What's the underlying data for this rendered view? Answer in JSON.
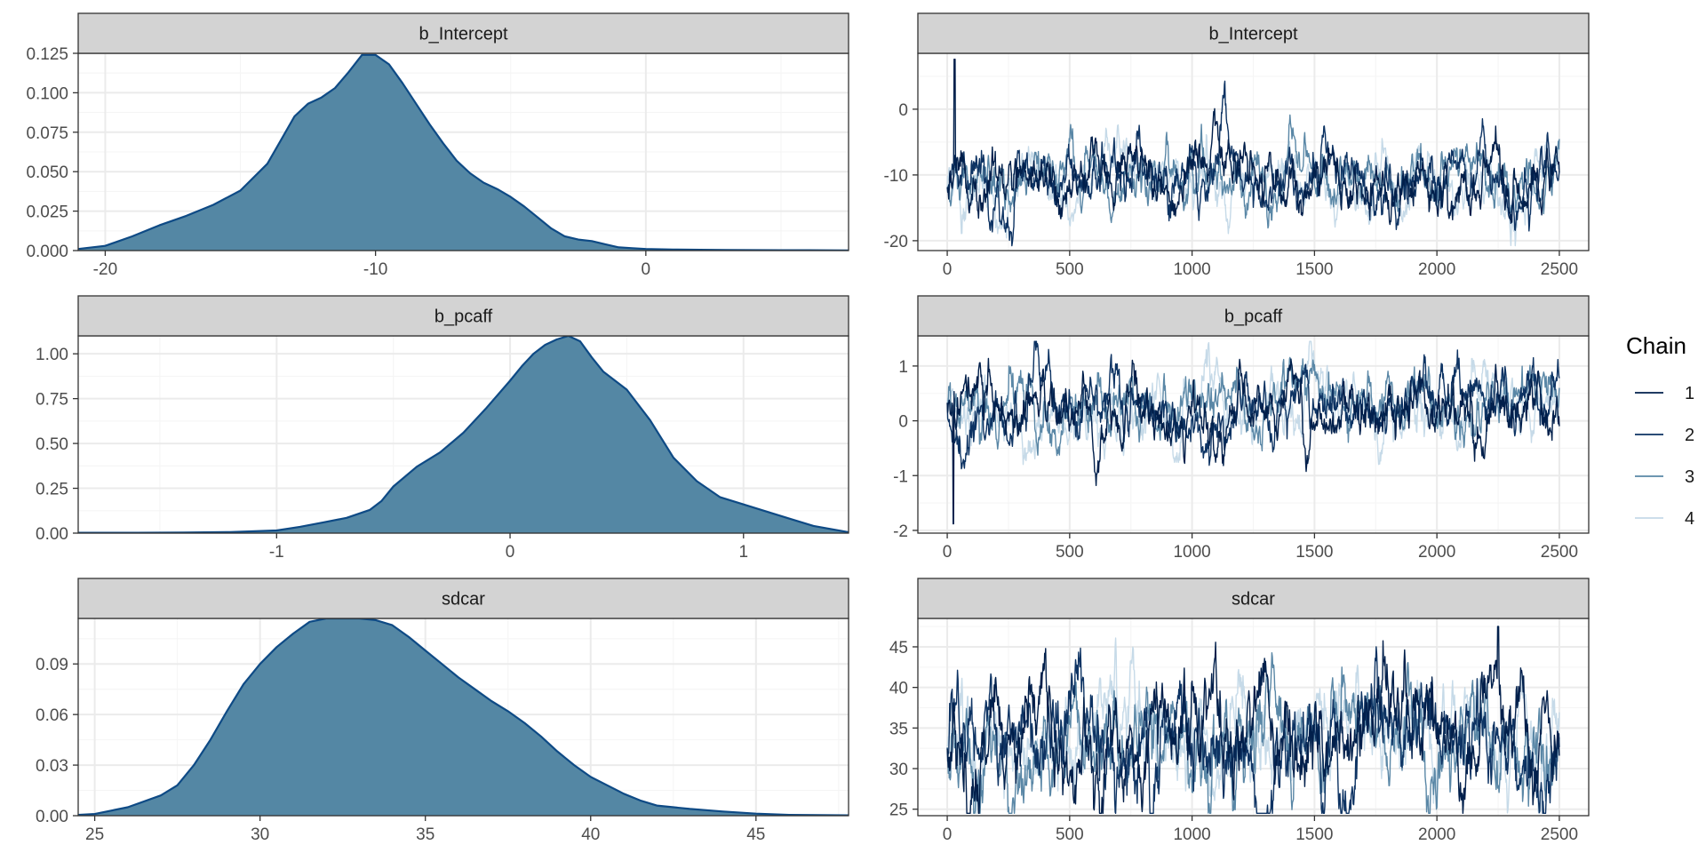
{
  "chart_data": [
    {
      "type": "area",
      "panel": "density",
      "title": "b_Intercept",
      "xlim": [
        -21,
        7.5
      ],
      "ylim": [
        0,
        0.125
      ],
      "xticks": [
        -20,
        -10,
        0
      ],
      "xtick_labels": [
        "-20",
        "-10",
        "0"
      ],
      "yticks": [
        0,
        0.025,
        0.05,
        0.075,
        0.1,
        0.125
      ],
      "ytick_labels": [
        "0.000",
        "0.025",
        "0.050",
        "0.075",
        "0.100",
        "0.125"
      ],
      "x": [
        -21,
        -20,
        -19,
        -18,
        -17,
        -16,
        -15,
        -14,
        -13.5,
        -13,
        -12.5,
        -12,
        -11.5,
        -11,
        -10.5,
        -10,
        -9.5,
        -9,
        -8.5,
        -8,
        -7.5,
        -7,
        -6.5,
        -6,
        -5.5,
        -5,
        -4.5,
        -4,
        -3.5,
        -3,
        -2.5,
        -2,
        -1.5,
        -1,
        -0.5,
        0,
        1,
        2,
        3,
        4,
        5,
        6,
        7.5
      ],
      "y": [
        0.001,
        0.003,
        0.009,
        0.016,
        0.022,
        0.029,
        0.038,
        0.055,
        0.07,
        0.085,
        0.093,
        0.097,
        0.103,
        0.113,
        0.124,
        0.124,
        0.118,
        0.106,
        0.093,
        0.08,
        0.068,
        0.057,
        0.049,
        0.043,
        0.039,
        0.034,
        0.028,
        0.021,
        0.014,
        0.009,
        0.007,
        0.006,
        0.004,
        0.002,
        0.0015,
        0.001,
        0.0007,
        0.0005,
        0.0004,
        0.0003,
        0.0002,
        0.0002,
        0.0001
      ]
    },
    {
      "type": "line",
      "panel": "trace",
      "title": "b_Intercept",
      "xlim": [
        -120,
        2620
      ],
      "ylim": [
        -21.5,
        8.5
      ],
      "xticks": [
        0,
        500,
        1000,
        1500,
        2000,
        2500
      ],
      "xtick_labels": [
        "0",
        "500",
        "1000",
        "1500",
        "2000",
        "2500"
      ],
      "yticks": [
        -20,
        -10,
        0
      ],
      "ytick_labels": [
        "-20",
        "-10",
        "0"
      ],
      "n_iter": 2500,
      "chain_profile": {
        "center": -10.5,
        "spread": 3.0,
        "min": -21,
        "max": 8,
        "spike_index": 30,
        "spike_value": 7.6
      },
      "series": [
        {
          "name": "1",
          "color": "#011f4b"
        },
        {
          "name": "2",
          "color": "#0d3363"
        },
        {
          "name": "3",
          "color": "#5a87a6"
        },
        {
          "name": "4",
          "color": "#c6dae8"
        }
      ]
    },
    {
      "type": "area",
      "panel": "density",
      "title": "b_pcaff",
      "xlim": [
        -1.85,
        1.45
      ],
      "ylim": [
        0,
        1.1
      ],
      "xticks": [
        -1,
        0,
        1
      ],
      "xtick_labels": [
        "-1",
        "0",
        "1"
      ],
      "yticks": [
        0,
        0.25,
        0.5,
        0.75,
        1.0
      ],
      "ytick_labels": [
        "0.00",
        "0.25",
        "0.50",
        "0.75",
        "1.00"
      ],
      "x": [
        -1.85,
        -1.6,
        -1.4,
        -1.2,
        -1.0,
        -0.9,
        -0.8,
        -0.7,
        -0.6,
        -0.55,
        -0.5,
        -0.4,
        -0.3,
        -0.2,
        -0.1,
        0,
        0.05,
        0.1,
        0.15,
        0.2,
        0.25,
        0.3,
        0.35,
        0.4,
        0.5,
        0.6,
        0.7,
        0.8,
        0.9,
        1.0,
        1.1,
        1.2,
        1.3,
        1.45
      ],
      "y": [
        0.002,
        0.002,
        0.003,
        0.006,
        0.015,
        0.035,
        0.06,
        0.085,
        0.13,
        0.18,
        0.26,
        0.37,
        0.45,
        0.56,
        0.7,
        0.85,
        0.93,
        1.0,
        1.05,
        1.08,
        1.1,
        1.07,
        0.98,
        0.9,
        0.8,
        0.63,
        0.42,
        0.29,
        0.2,
        0.16,
        0.12,
        0.08,
        0.04,
        0.005
      ]
    },
    {
      "type": "line",
      "panel": "trace",
      "title": "b_pcaff",
      "xlim": [
        -120,
        2620
      ],
      "ylim": [
        -2.05,
        1.55
      ],
      "xticks": [
        0,
        500,
        1000,
        1500,
        2000,
        2500
      ],
      "xtick_labels": [
        "0",
        "500",
        "1000",
        "1500",
        "2000",
        "2500"
      ],
      "yticks": [
        -2,
        -1,
        0,
        1
      ],
      "ytick_labels": [
        "-2",
        "-1",
        "0",
        "1"
      ],
      "n_iter": 2500,
      "chain_profile": {
        "center": 0.25,
        "spread": 0.38,
        "min": -1.9,
        "max": 1.45,
        "spike_index": 25,
        "spike_value": -1.88
      },
      "series": [
        {
          "name": "1",
          "color": "#011f4b"
        },
        {
          "name": "2",
          "color": "#0d3363"
        },
        {
          "name": "3",
          "color": "#5a87a6"
        },
        {
          "name": "4",
          "color": "#c6dae8"
        }
      ]
    },
    {
      "type": "area",
      "panel": "density",
      "title": "sdcar",
      "xlim": [
        24.5,
        47.8
      ],
      "ylim": [
        0,
        0.117
      ],
      "xticks": [
        25,
        30,
        35,
        40,
        45
      ],
      "xtick_labels": [
        "25",
        "30",
        "35",
        "40",
        "45"
      ],
      "yticks": [
        0,
        0.03,
        0.06,
        0.09
      ],
      "ytick_labels": [
        "0.00",
        "0.03",
        "0.06",
        "0.09"
      ],
      "x": [
        24.5,
        25,
        26,
        27,
        27.5,
        28,
        28.5,
        29,
        29.5,
        30,
        30.5,
        31,
        31.5,
        32,
        32.5,
        33,
        33.5,
        34,
        34.5,
        35,
        35.5,
        36,
        36.5,
        37,
        37.5,
        38,
        38.5,
        39,
        39.5,
        40,
        40.5,
        41,
        41.5,
        42,
        43,
        44,
        45,
        46,
        47.8
      ],
      "y": [
        0.0005,
        0.001,
        0.005,
        0.012,
        0.018,
        0.03,
        0.045,
        0.062,
        0.078,
        0.09,
        0.1,
        0.108,
        0.115,
        0.117,
        0.117,
        0.117,
        0.116,
        0.113,
        0.106,
        0.098,
        0.09,
        0.082,
        0.075,
        0.068,
        0.062,
        0.055,
        0.047,
        0.038,
        0.03,
        0.023,
        0.018,
        0.013,
        0.009,
        0.006,
        0.004,
        0.0025,
        0.0012,
        0.0005,
        0.0002
      ]
    },
    {
      "type": "line",
      "panel": "trace",
      "title": "sdcar",
      "xlim": [
        -120,
        2620
      ],
      "ylim": [
        24.2,
        48.5
      ],
      "xticks": [
        0,
        500,
        1000,
        1500,
        2000,
        2500
      ],
      "xtick_labels": [
        "0",
        "500",
        "1000",
        "1500",
        "2000",
        "2500"
      ],
      "yticks": [
        25,
        30,
        35,
        40,
        45
      ],
      "ytick_labels": [
        "25",
        "30",
        "35",
        "40",
        "45"
      ],
      "n_iter": 2500,
      "chain_profile": {
        "center": 34,
        "spread": 4.2,
        "min": 24.5,
        "max": 47.5,
        "spike_index": 2250,
        "spike_value": 47.5
      },
      "series": [
        {
          "name": "1",
          "color": "#011f4b"
        },
        {
          "name": "2",
          "color": "#0d3363"
        },
        {
          "name": "3",
          "color": "#5a87a6"
        },
        {
          "name": "4",
          "color": "#c6dae8"
        }
      ]
    }
  ],
  "legend": {
    "title": "Chain",
    "position": "right",
    "items": [
      {
        "label": "1",
        "color": "#011f4b"
      },
      {
        "label": "2",
        "color": "#0d3363"
      },
      {
        "label": "3",
        "color": "#5a87a6"
      },
      {
        "label": "4",
        "color": "#c6dae8"
      }
    ]
  },
  "style": {
    "density_fill": "#5487a4",
    "density_line": "#0e4a85",
    "strip_fill": "#d3d3d3",
    "grid_major": "#ebebeb",
    "grid_minor": "#f5f5f5",
    "panel_border": "#333333"
  }
}
